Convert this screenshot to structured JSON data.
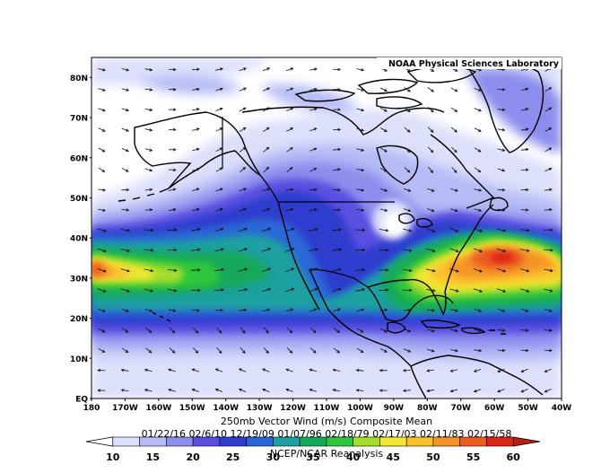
{
  "header": {
    "credit": "NOAA Physical Sciences Laboratory"
  },
  "axes": {
    "lat_labels": [
      "80N",
      "70N",
      "60N",
      "50N",
      "40N",
      "30N",
      "20N",
      "10N",
      "EQ"
    ],
    "lon_labels": [
      "180",
      "170W",
      "160W",
      "150W",
      "140W",
      "130W",
      "120W",
      "110W",
      "100W",
      "90W",
      "80W",
      "70W",
      "60W",
      "50W",
      "40W"
    ]
  },
  "caption": {
    "title": "250mb Vector Wind (m/s) Composite Mean",
    "dates": "01/22/16 02/6/10 12/19/09 01/07/96 02/18/79 02/17/03 02/11/83 02/15/58",
    "source": "NCEP/NCAR Reanalysis"
  },
  "colorbar": {
    "ticks": [
      "10",
      "15",
      "20",
      "25",
      "30",
      "35",
      "40",
      "45",
      "50",
      "55",
      "60"
    ],
    "colors": [
      "#dce0fb",
      "#b6bbf5",
      "#8c8ded",
      "#5a4fe1",
      "#2f3ccd",
      "#2a67d6",
      "#1ea0a0",
      "#15a85a",
      "#2dc63a",
      "#a5dd2c",
      "#f2e633",
      "#fbc12d",
      "#f49527",
      "#ed5d22",
      "#dc2418"
    ]
  },
  "chart_data": {
    "type": "heatmap",
    "title": "250mb Vector Wind (m/s) Composite Mean",
    "subtitle": "01/22/16 02/6/10 12/19/09 01/07/96 02/18/79 02/17/03 02/11/83 02/15/58",
    "variable_units": "m/s",
    "colorbar_range": [
      10,
      60
    ],
    "colorbar_interval": 2.5,
    "lon_range": [
      -180,
      -40
    ],
    "lat_range": [
      0,
      85
    ],
    "jet_maxima_approx": [
      {
        "lon": -178,
        "lat": 33,
        "speed": 57
      },
      {
        "lon": -60,
        "lat": 37,
        "speed": 60
      }
    ]
  }
}
